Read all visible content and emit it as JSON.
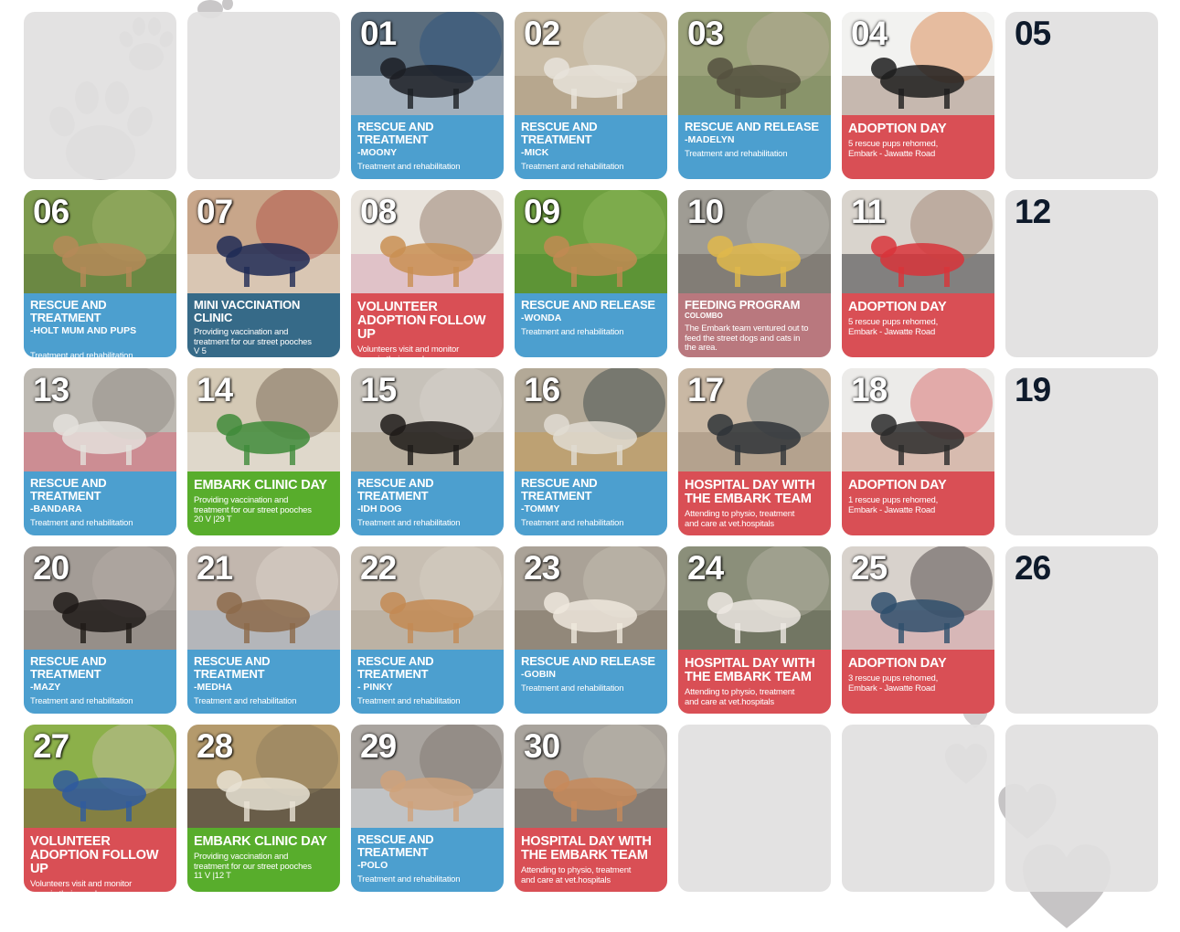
{
  "calendar": {
    "days": [
      {
        "num": "",
        "title": "",
        "sub": "",
        "body": "",
        "color": "",
        "photo": ""
      },
      {
        "num": "",
        "title": "",
        "sub": "",
        "body": "",
        "color": "",
        "photo": ""
      },
      {
        "num": "01",
        "title": "RESCUE AND TREATMENT",
        "sub": "-MOONY",
        "body": "Treatment and rehabilitation",
        "color": "blue",
        "photo": "vet-treating-dog"
      },
      {
        "num": "02",
        "title": "RESCUE AND TREATMENT",
        "sub": "-MICK",
        "body": "Treatment and rehabilitation",
        "color": "blue",
        "photo": "white-dog-lying"
      },
      {
        "num": "03",
        "title": "RESCUE AND RELEASE",
        "sub": "-MADELYN",
        "body": "Treatment and rehabilitation",
        "color": "blue",
        "photo": "dog-walking-outdoors"
      },
      {
        "num": "04",
        "title": "ADOPTION DAY",
        "sub": "",
        "body": "5 rescue pups rehomed,\nEmbark - Jawatte Road",
        "color": "red",
        "photo": "couple-with-puppy"
      },
      {
        "num": "05",
        "title": "",
        "sub": "",
        "body": "",
        "color": "",
        "photo": ""
      },
      {
        "num": "06",
        "title": "RESCUE AND TREATMENT",
        "sub": "-HOLT MUM AND PUPS",
        "body": "Treatment and rehabilitation",
        "color": "blue",
        "photo": "dog-in-grass"
      },
      {
        "num": "07",
        "title": "MINI VACCINATION CLINIC",
        "sub": "",
        "body": "Providing vaccination and\ntreatment for our street pooches\nV 5",
        "color": "navy",
        "photo": "vaccination-clinic"
      },
      {
        "num": "08",
        "title": "VOLUNTEER ADOPTION FOLLOW UP",
        "sub": "",
        "body": "Volunteers visit and monitor\npups in their new homes",
        "color": "red",
        "photo": "woman-holding-puppy"
      },
      {
        "num": "09",
        "title": "RESCUE AND RELEASE",
        "sub": "-WONDA",
        "body": "Treatment and rehabilitation",
        "color": "blue",
        "photo": "dog-on-lawn"
      },
      {
        "num": "10",
        "title": "FEEDING PROGRAM",
        "sub": "COLOMBO",
        "body": "The Embark team ventured out to\nfeed the street dogs and cats in\nthe area.",
        "color": "mauve",
        "photo": "feeding-street-dogs"
      },
      {
        "num": "11",
        "title": "ADOPTION DAY",
        "sub": "",
        "body": "5 rescue pups rehomed,\nEmbark - Jawatte Road",
        "color": "red",
        "photo": "boys-with-puppy"
      },
      {
        "num": "12",
        "title": "",
        "sub": "",
        "body": "",
        "color": "",
        "photo": ""
      },
      {
        "num": "13",
        "title": "RESCUE AND TREATMENT",
        "sub": "-BANDARA",
        "body": "Treatment and rehabilitation",
        "color": "blue",
        "photo": "dog-with-bandage"
      },
      {
        "num": "14",
        "title": "EMBARK CLINIC DAY",
        "sub": "",
        "body": "Providing vaccination and\ntreatment for our street pooches\n20 V |29 T",
        "color": "green",
        "photo": "clinic-vets"
      },
      {
        "num": "15",
        "title": "RESCUE AND TREATMENT",
        "sub": "-IDH DOG",
        "body": "Treatment and rehabilitation",
        "color": "blue",
        "photo": "dog-on-floor"
      },
      {
        "num": "16",
        "title": "RESCUE AND TREATMENT",
        "sub": "-TOMMY",
        "body": "Treatment and rehabilitation",
        "color": "blue",
        "photo": "dog-sleeping"
      },
      {
        "num": "17",
        "title": "HOSPITAL DAY WITH THE EMBARK TEAM",
        "sub": "",
        "body": "Attending to physio, treatment\nand care at vet.hospitals",
        "color": "red",
        "photo": "dog-standing"
      },
      {
        "num": "18",
        "title": "ADOPTION DAY",
        "sub": "",
        "body": "1 rescue pups rehomed,\nEmbark - Jawatte Road",
        "color": "red",
        "photo": "women-with-puppy"
      },
      {
        "num": "19",
        "title": "",
        "sub": "",
        "body": "",
        "color": "",
        "photo": ""
      },
      {
        "num": "20",
        "title": "RESCUE AND TREATMENT",
        "sub": "-MAZY",
        "body": "Treatment and rehabilitation",
        "color": "blue",
        "photo": "dog-curled-on-pavement"
      },
      {
        "num": "21",
        "title": "RESCUE AND TREATMENT",
        "sub": "-MEDHA",
        "body": "Treatment and rehabilitation",
        "color": "blue",
        "photo": "dog-in-blanket"
      },
      {
        "num": "22",
        "title": "RESCUE AND TREATMENT",
        "sub": "- PINKY",
        "body": "Treatment and rehabilitation",
        "color": "blue",
        "photo": "puppy-on-sand"
      },
      {
        "num": "23",
        "title": "RESCUE AND RELEASE",
        "sub": "-GOBIN",
        "body": "Treatment and rehabilitation",
        "color": "blue",
        "photo": "white-dog-walking"
      },
      {
        "num": "24",
        "title": "HOSPITAL DAY WITH THE EMBARK TEAM",
        "sub": "",
        "body": "Attending to physio, treatment\nand care at vet.hospitals",
        "color": "red",
        "photo": "white-dog-standing"
      },
      {
        "num": "25",
        "title": "ADOPTION DAY",
        "sub": "",
        "body": "3 rescue pups rehomed,\nEmbark - Jawatte Road",
        "color": "red",
        "photo": "group-with-puppy"
      },
      {
        "num": "26",
        "title": "",
        "sub": "",
        "body": "",
        "color": "",
        "photo": ""
      },
      {
        "num": "27",
        "title": "VOLUNTEER ADOPTION FOLLOW UP",
        "sub": "",
        "body": "Volunteers visit and monitor\npups in their new homes",
        "color": "red",
        "photo": "woman-hugging-dog"
      },
      {
        "num": "28",
        "title": "EMBARK CLINIC DAY",
        "sub": "",
        "body": "Providing vaccination and\ntreatment for our street pooches\n11 V |12 T",
        "color": "green",
        "photo": "clinic-exam"
      },
      {
        "num": "29",
        "title": "RESCUE AND TREATMENT",
        "sub": "-POLO",
        "body": "Treatment and rehabilitation",
        "color": "blue",
        "photo": "puppy-in-hands"
      },
      {
        "num": "30",
        "title": "HOSPITAL DAY WITH THE EMBARK TEAM",
        "sub": "",
        "body": "Attending to physio, treatment\nand care at vet.hospitals",
        "color": "red",
        "photo": "brown-dog-standing"
      },
      {
        "num": "",
        "title": "",
        "sub": "",
        "body": "",
        "color": "",
        "photo": ""
      },
      {
        "num": "",
        "title": "",
        "sub": "",
        "body": "",
        "color": "",
        "photo": ""
      },
      {
        "num": "",
        "title": "",
        "sub": "",
        "body": "",
        "color": "",
        "photo": ""
      }
    ]
  },
  "colors": {
    "blue": "#4c9fcf",
    "red": "#d94f55",
    "green": "#58ad2c",
    "navy": "#366a88",
    "mauve": "#b9787e",
    "blank": "#e1dfe0",
    "date_dark": "#0e1a2b"
  },
  "decorations": {
    "icons": [
      "paw-print-icon",
      "heart-icon"
    ]
  }
}
